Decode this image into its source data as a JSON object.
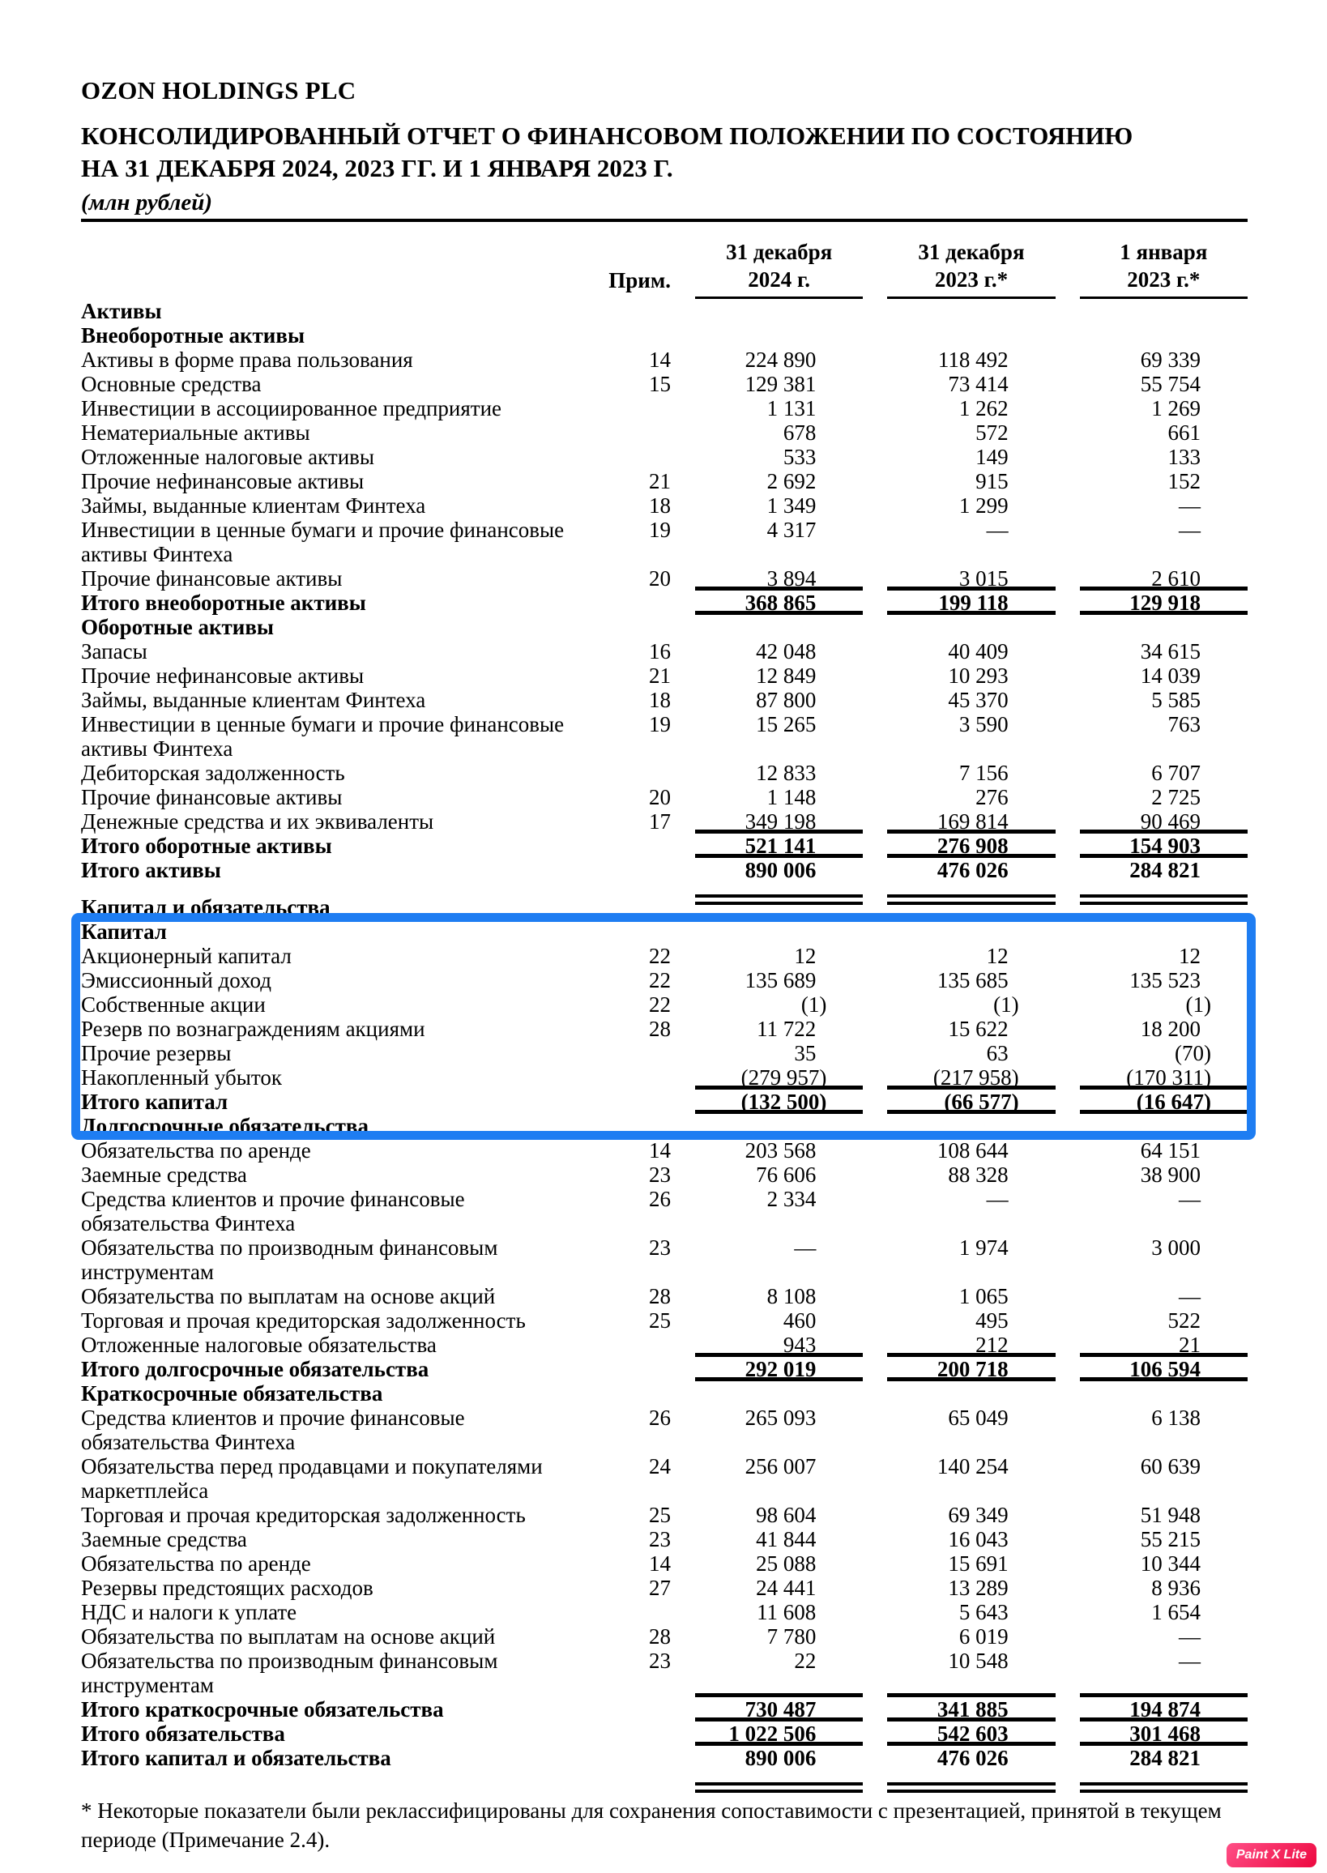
{
  "header": {
    "company": "OZON HOLDINGS PLC",
    "title_line1": "КОНСОЛИДИРОВАННЫЙ ОТЧЕТ О ФИНАНСОВОМ ПОЛОЖЕНИИ ПО СОСТОЯНИЮ",
    "title_line2": "НА 31 ДЕКАБРЯ 2024, 2023 ГГ. И 1 ЯНВАРЯ 2023 Г.",
    "units": "(млн рублей)"
  },
  "columns": {
    "note": "Прим.",
    "c1": {
      "line1": "31 декабря",
      "line2": "2024 г."
    },
    "c2": {
      "line1": "31 декабря",
      "line2": "2023 г.*"
    },
    "c3": {
      "line1": "1 января",
      "line2": "2023 г.*"
    }
  },
  "rows": [
    {
      "label": "Активы",
      "bold": true
    },
    {
      "label": "Внеоборотные активы",
      "bold": true
    },
    {
      "label": "Активы в форме права пользования",
      "note": "14",
      "values": [
        "224 890",
        "118 492",
        "69 339"
      ]
    },
    {
      "label": "Основные средства",
      "note": "15",
      "values": [
        "129 381",
        "73 414",
        "55 754"
      ]
    },
    {
      "label": "Инвестиции в ассоциированное предприятие",
      "values": [
        "1 131",
        "1 262",
        "1 269"
      ]
    },
    {
      "label": "Нематериальные активы",
      "values": [
        "678",
        "572",
        "661"
      ]
    },
    {
      "label": "Отложенные налоговые активы",
      "values": [
        "533",
        "149",
        "133"
      ]
    },
    {
      "label": "Прочие нефинансовые активы",
      "note": "21",
      "values": [
        "2 692",
        "915",
        "152"
      ]
    },
    {
      "label": "Займы, выданные клиентам Финтеха",
      "note": "18",
      "values": [
        "1 349",
        "1 299",
        "—"
      ]
    },
    {
      "label": "Инвестиции в ценные бумаги и прочие финансовые",
      "label2": "активы Финтеха",
      "note": "19",
      "values": [
        "4 317",
        "—",
        "—"
      ]
    },
    {
      "label": "Прочие финансовые активы",
      "note": "20",
      "values": [
        "3 894",
        "3 015",
        "2 610"
      ],
      "rule": "single"
    },
    {
      "label": "Итого внеоборотные активы",
      "bold": true,
      "values": [
        "368 865",
        "199 118",
        "129 918"
      ],
      "rule": "single"
    },
    {
      "label": "Оборотные активы",
      "bold": true
    },
    {
      "label": "Запасы",
      "note": "16",
      "values": [
        "42 048",
        "40 409",
        "34 615"
      ]
    },
    {
      "label": "Прочие нефинансовые активы",
      "note": "21",
      "values": [
        "12 849",
        "10 293",
        "14 039"
      ]
    },
    {
      "label": "Займы, выданные клиентам Финтеха",
      "note": "18",
      "values": [
        "87 800",
        "45 370",
        "5 585"
      ]
    },
    {
      "label": "Инвестиции в ценные бумаги и прочие финансовые",
      "label2": "активы Финтеха",
      "note": "19",
      "values": [
        "15 265",
        "3 590",
        "763"
      ]
    },
    {
      "label": "Дебиторская задолженность",
      "values": [
        "12 833",
        "7 156",
        "6 707"
      ]
    },
    {
      "label": "Прочие финансовые активы",
      "note": "20",
      "values": [
        "1 148",
        "276",
        "2 725"
      ]
    },
    {
      "label": "Денежные средства и их эквиваленты",
      "note": "17",
      "values": [
        "349 198",
        "169 814",
        "90 469"
      ],
      "rule": "single"
    },
    {
      "label": "Итого оборотные активы",
      "bold": true,
      "values": [
        "521 141",
        "276 908",
        "154 903"
      ],
      "rule": "single"
    },
    {
      "label": "Итого активы",
      "bold": true,
      "values": [
        "890 006",
        "476 026",
        "284 821"
      ],
      "rule": "double"
    },
    {
      "label": "Капитал и обязательства",
      "bold": true
    },
    {
      "label": "Капитал",
      "bold": true,
      "highlight": true
    },
    {
      "label": "Акционерный капитал",
      "note": "22",
      "values": [
        "12",
        "12",
        "12"
      ],
      "highlight": true
    },
    {
      "label": "Эмиссионный доход",
      "note": "22",
      "values": [
        "135 689",
        "135 685",
        "135 523"
      ],
      "highlight": true
    },
    {
      "label": "Собственные акции",
      "note": "22",
      "values": [
        "(1)",
        "(1)",
        "(1)"
      ],
      "highlight": true
    },
    {
      "label": "Резерв по вознаграждениям акциями",
      "note": "28",
      "values": [
        "11 722",
        "15 622",
        "18 200"
      ],
      "highlight": true
    },
    {
      "label": "Прочие резервы",
      "values": [
        "35",
        "63",
        "(70)"
      ],
      "highlight": true
    },
    {
      "label": "Накопленный убыток",
      "values": [
        "(279 957)",
        "(217 958)",
        "(170 311)"
      ],
      "rule": "single",
      "highlight": true
    },
    {
      "label": "Итого капитал",
      "bold": true,
      "values": [
        "(132 500)",
        "(66 577)",
        "(16 647)"
      ],
      "rule": "single",
      "highlight": true
    },
    {
      "label": "Долгосрочные обязательства",
      "bold": true
    },
    {
      "label": "Обязательства по аренде",
      "note": "14",
      "values": [
        "203 568",
        "108 644",
        "64 151"
      ]
    },
    {
      "label": "Заемные средства",
      "note": "23",
      "values": [
        "76 606",
        "88 328",
        "38 900"
      ]
    },
    {
      "label": "Средства клиентов и прочие финансовые",
      "label2": "обязательства Финтеха",
      "note": "26",
      "values": [
        "2 334",
        "—",
        "—"
      ]
    },
    {
      "label": "Обязательства по производным финансовым",
      "label2": "инструментам",
      "note": "23",
      "values": [
        "—",
        "1 974",
        "3 000"
      ]
    },
    {
      "label": "Обязательства по выплатам на основе акций",
      "note": "28",
      "values": [
        "8 108",
        "1 065",
        "—"
      ]
    },
    {
      "label": "Торговая и прочая кредиторская задолженность",
      "note": "25",
      "values": [
        "460",
        "495",
        "522"
      ]
    },
    {
      "label": "Отложенные налоговые обязательства",
      "values": [
        "943",
        "212",
        "21"
      ],
      "rule": "single"
    },
    {
      "label": "Итого долгосрочные обязательства",
      "bold": true,
      "values": [
        "292 019",
        "200 718",
        "106 594"
      ],
      "rule": "single"
    },
    {
      "label": "Краткосрочные обязательства",
      "bold": true
    },
    {
      "label": "Средства клиентов и прочие финансовые",
      "label2": "обязательства Финтеха",
      "note": "26",
      "values": [
        "265 093",
        "65 049",
        "6 138"
      ]
    },
    {
      "label": "Обязательства перед продавцами и покупателями",
      "label2": "маркетплейса",
      "note": "24",
      "values": [
        "256 007",
        "140 254",
        "60 639"
      ]
    },
    {
      "label": "Торговая и прочая кредиторская задолженность",
      "note": "25",
      "values": [
        "98 604",
        "69 349",
        "51 948"
      ]
    },
    {
      "label": "Заемные средства",
      "note": "23",
      "values": [
        "41 844",
        "16 043",
        "55 215"
      ]
    },
    {
      "label": "Обязательства по аренде",
      "note": "14",
      "values": [
        "25 088",
        "15 691",
        "10 344"
      ]
    },
    {
      "label": "Резервы предстоящих расходов",
      "note": "27",
      "values": [
        "24 441",
        "13 289",
        "8 936"
      ]
    },
    {
      "label": "НДС и налоги к уплате",
      "values": [
        "11 608",
        "5 643",
        "1 654"
      ]
    },
    {
      "label": "Обязательства по выплатам на основе акций",
      "note": "28",
      "values": [
        "7 780",
        "6 019",
        "—"
      ]
    },
    {
      "label": "Обязательства по производным финансовым",
      "label2": "инструментам",
      "note": "23",
      "values": [
        "22",
        "10 548",
        "—"
      ],
      "rule": "single"
    },
    {
      "label": "Итого краткосрочные обязательства",
      "bold": true,
      "values": [
        "730 487",
        "341 885",
        "194 874"
      ],
      "rule": "single"
    },
    {
      "label": "Итого обязательства",
      "bold": true,
      "values": [
        "1 022 506",
        "542 603",
        "301 468"
      ],
      "rule": "single"
    },
    {
      "label": "Итого капитал и обязательства",
      "bold": true,
      "values": [
        "890 006",
        "476 026",
        "284 821"
      ],
      "rule": "double"
    }
  ],
  "footnote": "* Некоторые показатели были реклассифицированы для сохранения сопоставимости с презентацией, принятой в текущем периоде (Примечание 2.4).",
  "watermark": "Paint X Lite",
  "colors": {
    "highlight_border": "#1e7df2",
    "badge_gradient_start": "#ff4e86",
    "badge_gradient_end": "#ed0940",
    "rule": "#000000"
  }
}
